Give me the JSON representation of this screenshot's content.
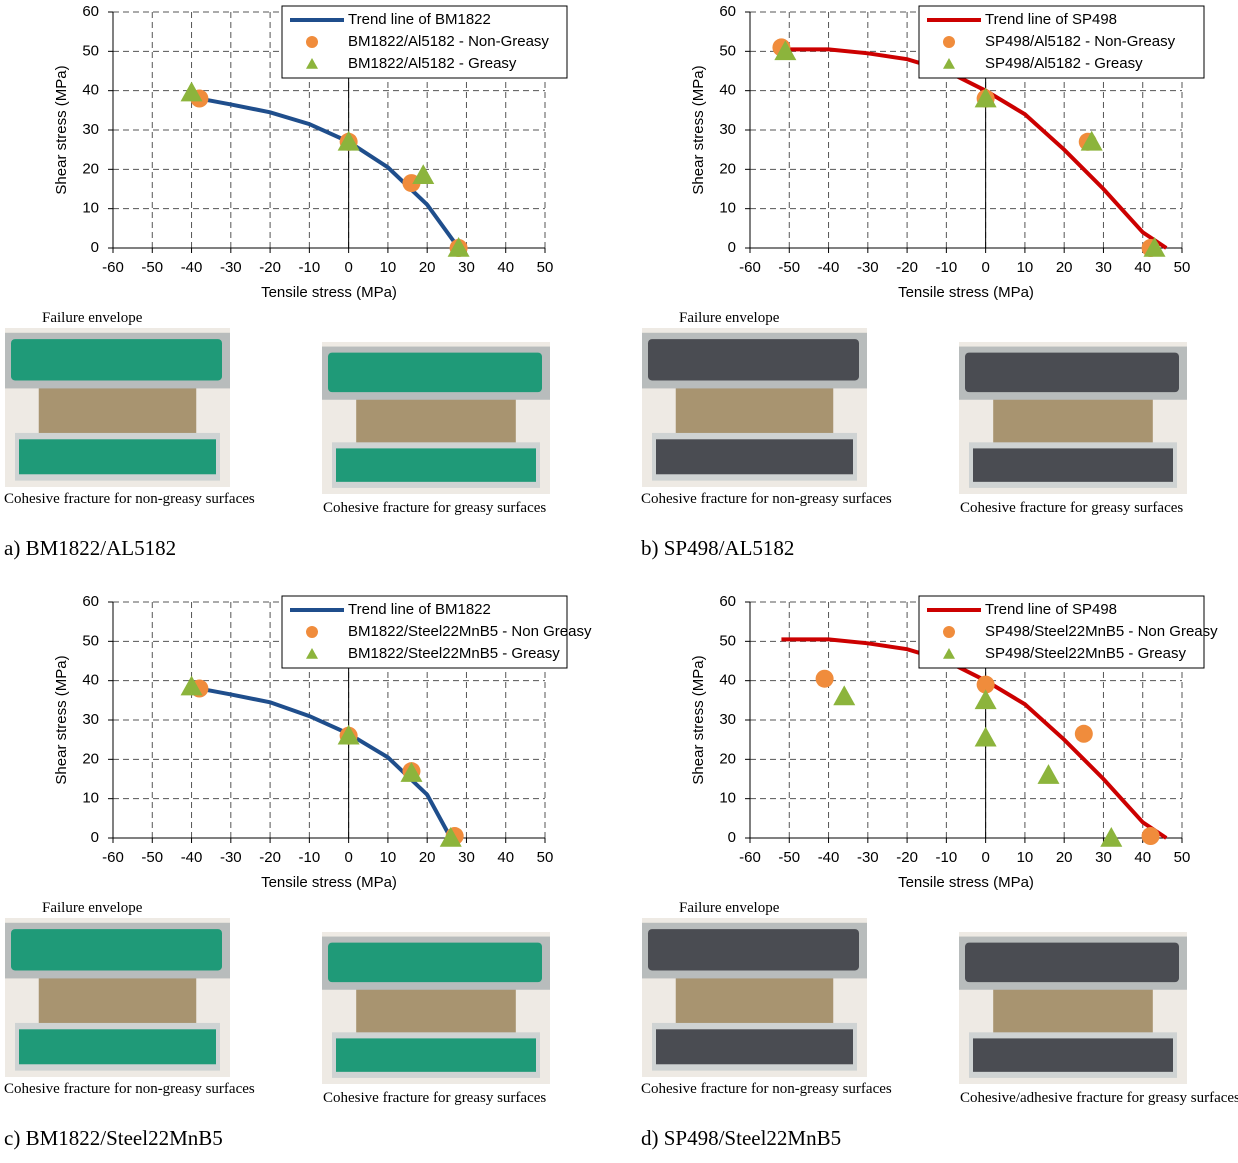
{
  "chart_data": [
    {
      "type": "scatter",
      "x_label": "Tensile stress (MPa)",
      "y_label": "Shear stress (MPa)",
      "xlim": [
        -60,
        50
      ],
      "ylim": [
        0,
        60
      ],
      "xticks": [
        -60,
        -50,
        -40,
        -30,
        -20,
        -10,
        0,
        10,
        20,
        30,
        40,
        50
      ],
      "yticks": [
        0,
        10,
        20,
        30,
        40,
        50,
        60
      ],
      "grid": true,
      "legend_position": "upper right",
      "series": [
        {
          "name": "Trend line of BM1822",
          "color": "#1f4e8c",
          "mark": "line",
          "x": [
            -38,
            -30,
            -20,
            -10,
            0,
            10,
            20,
            28
          ],
          "values": [
            38,
            36.5,
            34.5,
            31.5,
            27,
            20.5,
            11,
            0
          ]
        },
        {
          "name": "BM1822/Al5182 - Non-Greasy",
          "color": "#f08c3c",
          "mark": "circle",
          "x": [
            -38,
            0,
            16,
            28
          ],
          "values": [
            38,
            27,
            16.5,
            0
          ]
        },
        {
          "name": "BM1822/Al5182 - Greasy",
          "color": "#8cb43c",
          "mark": "triangle",
          "x": [
            -40,
            0,
            19,
            28
          ],
          "values": [
            39.5,
            27,
            18.5,
            0
          ]
        }
      ]
    },
    {
      "type": "scatter",
      "x_label": "Tensile stress (MPa)",
      "y_label": "Shear stress (MPa)",
      "xlim": [
        -60,
        50
      ],
      "ylim": [
        0,
        60
      ],
      "xticks": [
        -60,
        -50,
        -40,
        -30,
        -20,
        -10,
        0,
        10,
        20,
        30,
        40,
        50
      ],
      "yticks": [
        0,
        10,
        20,
        30,
        40,
        50,
        60
      ],
      "grid": true,
      "legend_position": "upper right",
      "series": [
        {
          "name": "Trend line of SP498",
          "color": "#cc0000",
          "mark": "line",
          "x": [
            -52,
            -40,
            -30,
            -20,
            -10,
            0,
            10,
            20,
            30,
            40,
            46
          ],
          "values": [
            50.5,
            50.5,
            49.5,
            48,
            45,
            40,
            34,
            25,
            15,
            4,
            0
          ]
        },
        {
          "name": "SP498/Al5182 - Non-Greasy",
          "color": "#f08c3c",
          "mark": "circle",
          "x": [
            -52,
            0,
            26,
            42
          ],
          "values": [
            51,
            38,
            27,
            0
          ]
        },
        {
          "name": "SP498/Al5182 - Greasy",
          "color": "#8cb43c",
          "mark": "triangle",
          "x": [
            -51,
            0,
            27,
            43
          ],
          "values": [
            50,
            38,
            27,
            0
          ]
        }
      ]
    },
    {
      "type": "scatter",
      "x_label": "Tensile stress (MPa)",
      "y_label": "Shear stress (MPa)",
      "xlim": [
        -60,
        50
      ],
      "ylim": [
        0,
        60
      ],
      "xticks": [
        -60,
        -50,
        -40,
        -30,
        -20,
        -10,
        0,
        10,
        20,
        30,
        40,
        50
      ],
      "yticks": [
        0,
        10,
        20,
        30,
        40,
        50,
        60
      ],
      "grid": true,
      "legend_position": "upper right",
      "series": [
        {
          "name": "Trend line of BM1822",
          "color": "#1f4e8c",
          "mark": "line",
          "x": [
            -38,
            -30,
            -20,
            -10,
            0,
            10,
            20,
            26
          ],
          "values": [
            38,
            36.5,
            34.5,
            31,
            26.5,
            20.5,
            11,
            0
          ]
        },
        {
          "name": "BM1822/Steel22MnB5 - Non Greasy",
          "color": "#f08c3c",
          "mark": "circle",
          "x": [
            -38,
            0,
            16,
            27
          ],
          "values": [
            38,
            26,
            17,
            0.5
          ]
        },
        {
          "name": "BM1822/Steel22MnB5 - Greasy",
          "color": "#8cb43c",
          "mark": "triangle",
          "x": [
            -40,
            0,
            16,
            26
          ],
          "values": [
            38.5,
            26,
            16.5,
            0
          ]
        }
      ]
    },
    {
      "type": "scatter",
      "x_label": "Tensile stress (MPa)",
      "y_label": "Shear stress (MPa)",
      "xlim": [
        -60,
        50
      ],
      "ylim": [
        0,
        60
      ],
      "xticks": [
        -60,
        -50,
        -40,
        -30,
        -20,
        -10,
        0,
        10,
        20,
        30,
        40,
        50
      ],
      "yticks": [
        0,
        10,
        20,
        30,
        40,
        50,
        60
      ],
      "grid": true,
      "legend_position": "upper right",
      "series": [
        {
          "name": "Trend line of SP498",
          "color": "#cc0000",
          "mark": "line",
          "x": [
            -52,
            -40,
            -30,
            -20,
            -10,
            0,
            10,
            20,
            30,
            40,
            46
          ],
          "values": [
            50.5,
            50.5,
            49.5,
            48,
            45,
            40,
            34,
            25,
            15,
            4,
            0
          ]
        },
        {
          "name": "SP498/Steel22MnB5 - Non Greasy",
          "color": "#f08c3c",
          "mark": "circle",
          "x": [
            -41,
            0,
            25,
            42
          ],
          "values": [
            40.5,
            39,
            26.5,
            0.5
          ]
        },
        {
          "name": "SP498/Steel22MnB5 - Greasy",
          "color": "#8cb43c",
          "mark": "triangle",
          "x": [
            -36,
            0,
            0,
            16,
            32
          ],
          "values": [
            36,
            35,
            25.5,
            16,
            0
          ]
        }
      ]
    }
  ],
  "panels": [
    {
      "envelope_label": "Failure envelope",
      "photo_captions": [
        "Cohesive fracture for non-greasy surfaces",
        "Cohesive fracture for greasy surfaces"
      ],
      "caption": "a) BM1822/AL5182"
    },
    {
      "envelope_label": "Failure envelope",
      "photo_captions": [
        "Cohesive fracture for non-greasy surfaces",
        "Cohesive fracture for greasy surfaces"
      ],
      "caption": "b) SP498/AL5182"
    },
    {
      "envelope_label": "Failure envelope",
      "photo_captions": [
        "Cohesive fracture for non-greasy surfaces",
        "Cohesive fracture for greasy surfaces"
      ],
      "caption": "c) BM1822/Steel22MnB5"
    },
    {
      "envelope_label": "Failure envelope",
      "photo_captions": [
        "Cohesive fracture for non-greasy surfaces",
        "Cohesive/adhesive fracture for greasy surfaces"
      ],
      "caption": "d) SP498/Steel22MnB5"
    }
  ]
}
